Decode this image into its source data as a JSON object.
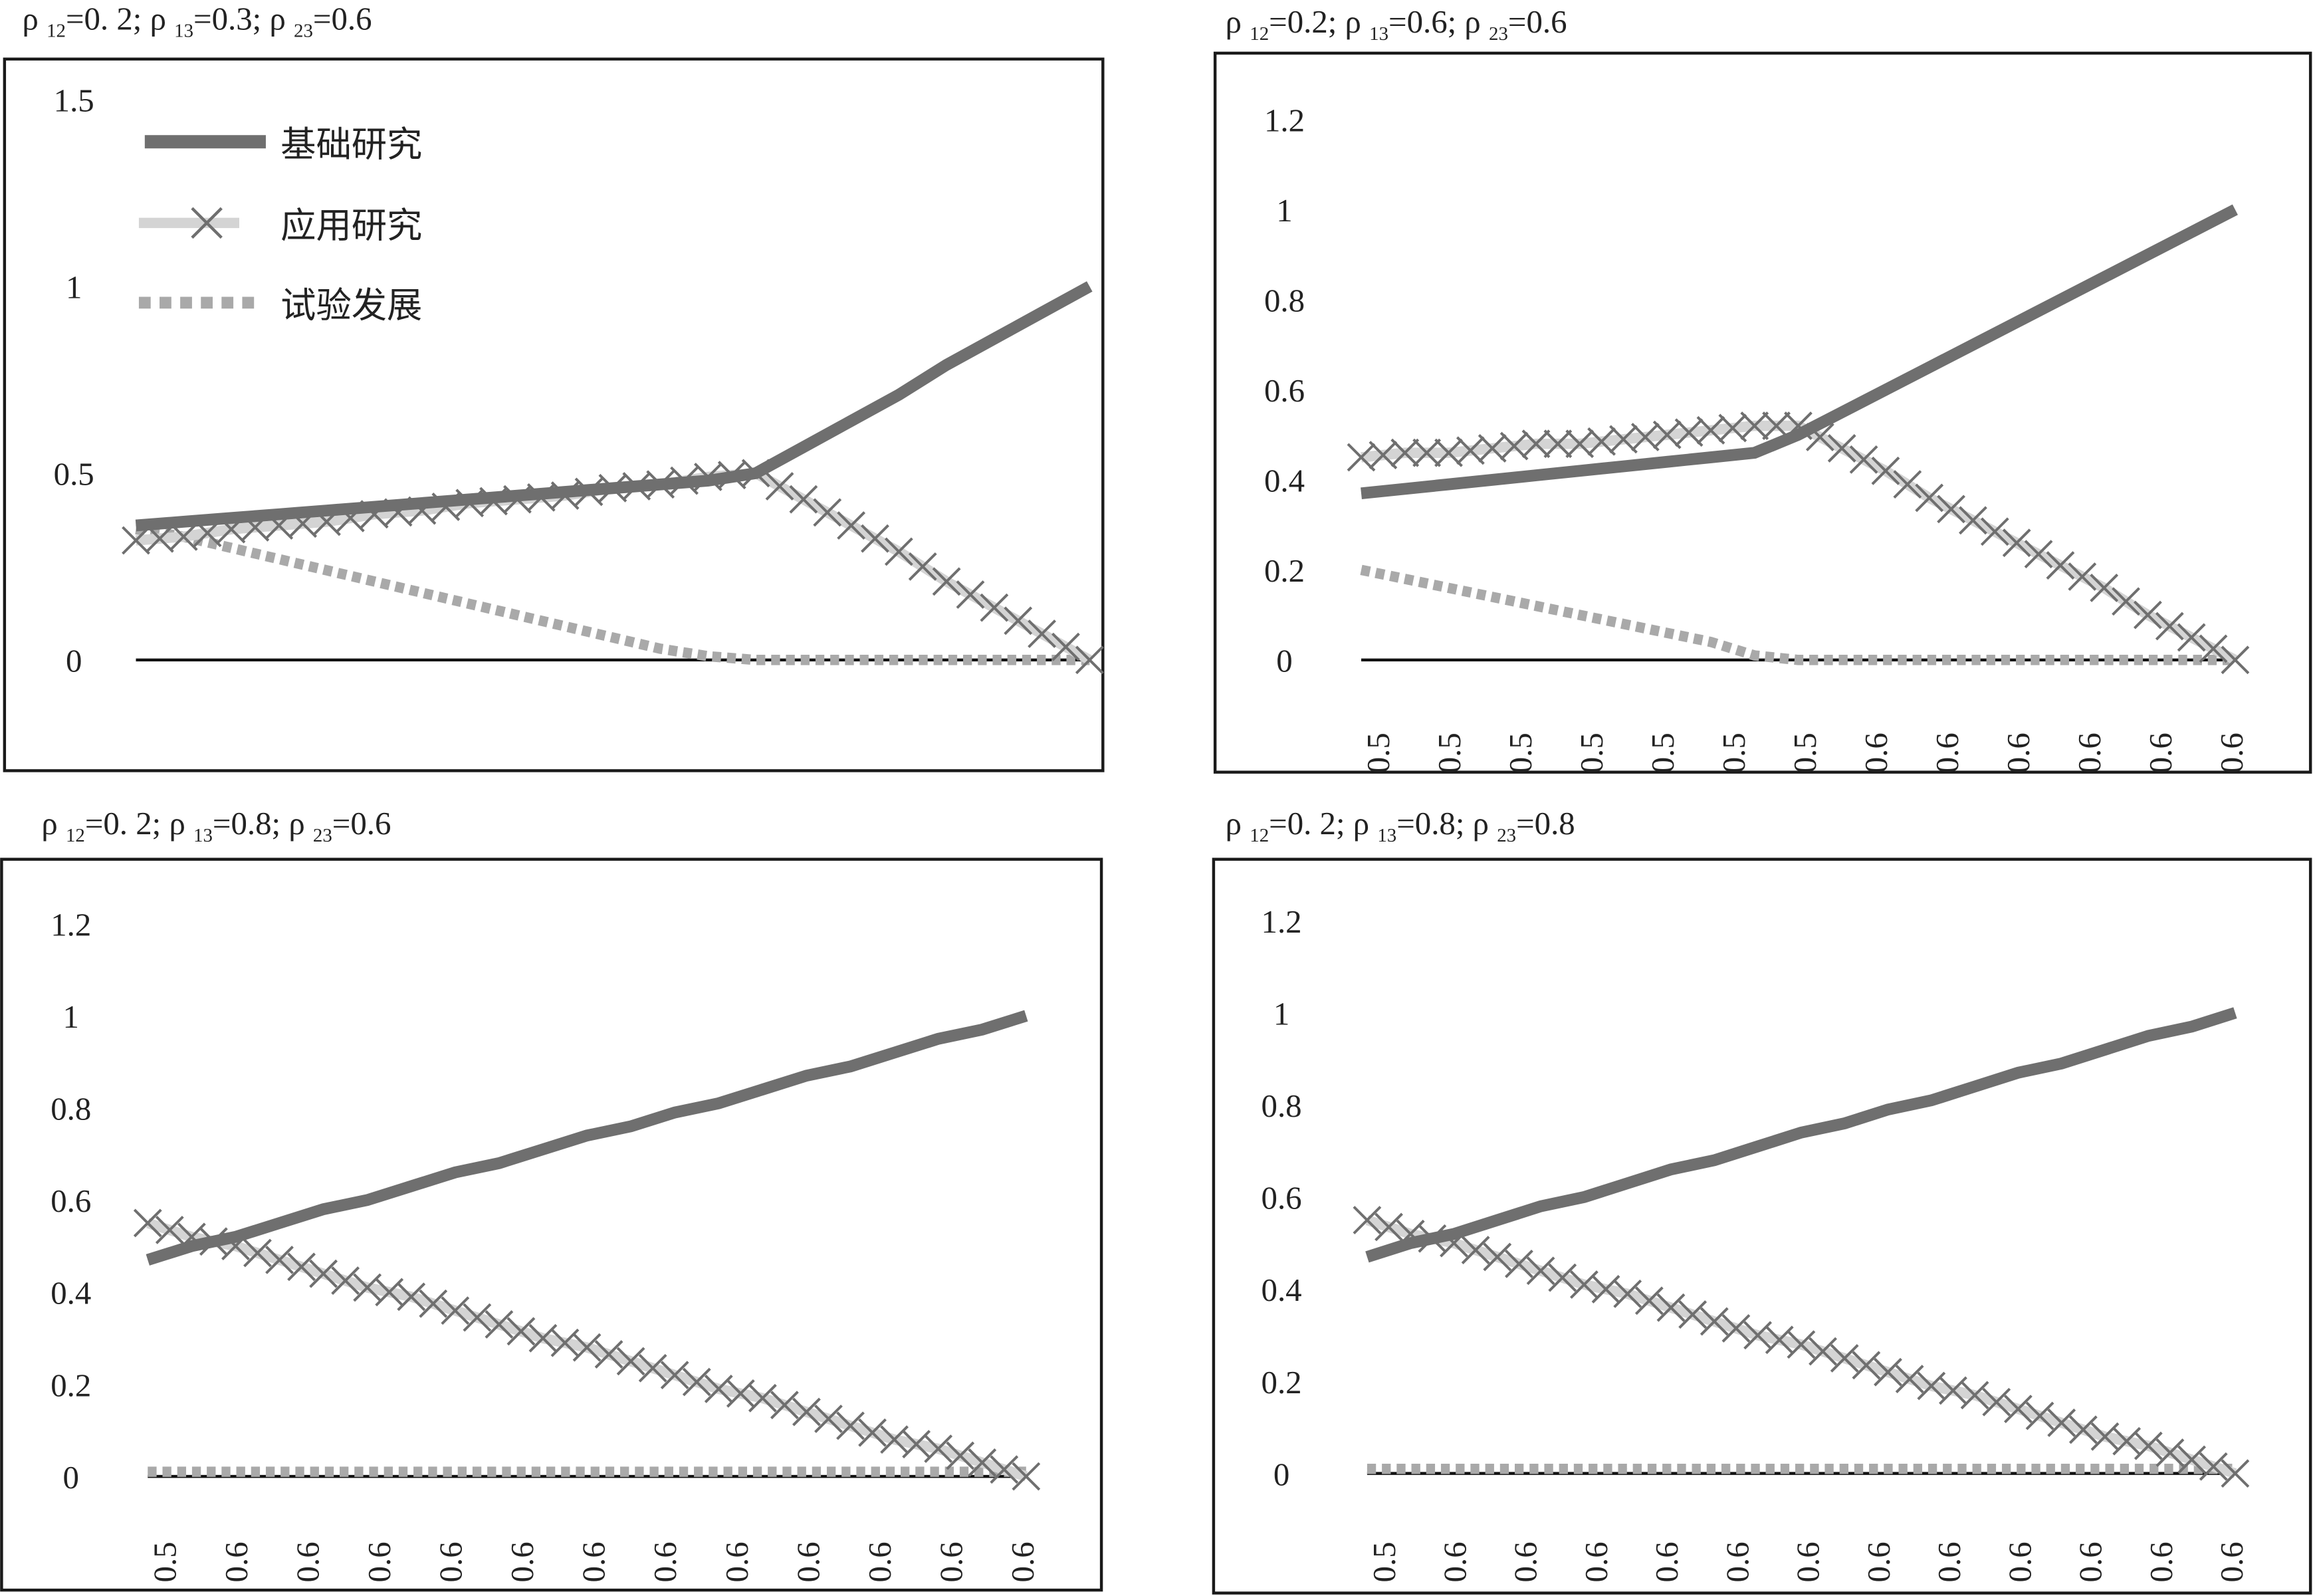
{
  "colors": {
    "basic": "#6f6f6f",
    "applied_line": "#d4d4d4",
    "applied_marker": "#6f6f6f",
    "development": "#a9a9a9",
    "frame": "#1a1a1a"
  },
  "legend": [
    "基础研究",
    "应用研究",
    "试验发展"
  ],
  "chart_data": [
    {
      "type": "line",
      "title": {
        "p12": "0. 2",
        "p13": "0.3",
        "p23": "0.6"
      },
      "yticks": [
        "0",
        "0.5",
        "1",
        "1.5"
      ],
      "ytick_values": [
        0,
        0.5,
        1,
        1.5
      ],
      "ylim": [
        0,
        1.5
      ],
      "xticks": [],
      "legend_position": "top-left",
      "series": [
        {
          "name": "基础研究",
          "values": [
            0.36,
            0.37,
            0.38,
            0.39,
            0.4,
            0.41,
            0.42,
            0.43,
            0.44,
            0.45,
            0.46,
            0.47,
            0.48,
            0.5,
            0.57,
            0.64,
            0.71,
            0.79,
            0.86,
            0.93,
            1.0
          ]
        },
        {
          "name": "应用研究",
          "values": [
            0.32,
            0.33,
            0.35,
            0.36,
            0.37,
            0.39,
            0.4,
            0.42,
            0.43,
            0.44,
            0.46,
            0.47,
            0.49,
            0.5,
            0.43,
            0.36,
            0.29,
            0.21,
            0.14,
            0.07,
            0.0
          ]
        },
        {
          "name": "试验发展",
          "values": [
            0.35,
            0.33,
            0.3,
            0.27,
            0.24,
            0.21,
            0.18,
            0.15,
            0.12,
            0.09,
            0.06,
            0.03,
            0.01,
            0,
            0,
            0,
            0,
            0,
            0,
            0,
            0
          ]
        }
      ]
    },
    {
      "type": "line",
      "title": {
        "p12": "0.2",
        "p13": "0.6",
        "p23": "0.6"
      },
      "yticks": [
        "0",
        "0.2",
        "0.4",
        "0.6",
        "0.8",
        "1",
        "1.2"
      ],
      "ytick_values": [
        0,
        0.2,
        0.4,
        0.6,
        0.8,
        1,
        1.2
      ],
      "ylim": [
        0,
        1.2
      ],
      "xticks": [
        "0.5",
        "0.5",
        "0.5",
        "0.5",
        "0.5",
        "0.5",
        "0.5",
        "0.6",
        "0.6",
        "0.6",
        "0.6",
        "0.6",
        "0.6"
      ],
      "series": [
        {
          "name": "基础研究",
          "values": [
            0.37,
            0.38,
            0.39,
            0.4,
            0.41,
            0.42,
            0.43,
            0.44,
            0.45,
            0.46,
            0.5,
            0.55,
            0.6,
            0.65,
            0.7,
            0.75,
            0.8,
            0.85,
            0.9,
            0.95,
            1.0
          ]
        },
        {
          "name": "应用研究",
          "values": [
            0.45,
            0.46,
            0.46,
            0.47,
            0.48,
            0.48,
            0.49,
            0.5,
            0.51,
            0.52,
            0.52,
            0.47,
            0.42,
            0.36,
            0.31,
            0.26,
            0.21,
            0.16,
            0.1,
            0.05,
            0.0
          ]
        },
        {
          "name": "试验发展",
          "values": [
            0.2,
            0.18,
            0.16,
            0.14,
            0.12,
            0.1,
            0.08,
            0.06,
            0.04,
            0.01,
            0,
            0,
            0,
            0,
            0,
            0,
            0,
            0,
            0,
            0,
            0
          ]
        }
      ]
    },
    {
      "type": "line",
      "title": {
        "p12": "0. 2",
        "p13": "0.8",
        "p23": "0.6"
      },
      "yticks": [
        "0",
        "0.2",
        "0.4",
        "0.6",
        "0.8",
        "1",
        "1.2"
      ],
      "ytick_values": [
        0,
        0.2,
        0.4,
        0.6,
        0.8,
        1,
        1.2
      ],
      "ylim": [
        0,
        1.2
      ],
      "xticks": [
        "0.5",
        "0.6",
        "0.6",
        "0.6",
        "0.6",
        "0.6",
        "0.6",
        "0.6",
        "0.6",
        "0.6",
        "0.6",
        "0.6",
        "0.6"
      ],
      "series": [
        {
          "name": "基础研究",
          "values": [
            0.47,
            0.5,
            0.52,
            0.55,
            0.58,
            0.6,
            0.63,
            0.66,
            0.68,
            0.71,
            0.74,
            0.76,
            0.79,
            0.81,
            0.84,
            0.87,
            0.89,
            0.92,
            0.95,
            0.97,
            1.0
          ]
        },
        {
          "name": "应用研究",
          "values": [
            0.55,
            0.52,
            0.5,
            0.47,
            0.44,
            0.41,
            0.39,
            0.36,
            0.33,
            0.3,
            0.28,
            0.25,
            0.22,
            0.19,
            0.17,
            0.14,
            0.11,
            0.08,
            0.06,
            0.03,
            0.0
          ]
        },
        {
          "name": "试验发展",
          "values": [
            0.01,
            0.01,
            0.01,
            0.01,
            0.01,
            0.01,
            0.01,
            0.01,
            0.01,
            0.01,
            0.01,
            0.01,
            0.01,
            0.01,
            0.01,
            0.01,
            0.01,
            0.01,
            0.01,
            0.01,
            0.01
          ]
        }
      ]
    },
    {
      "type": "line",
      "title": {
        "p12": "0. 2",
        "p13": "0.8",
        "p23": "0.8"
      },
      "yticks": [
        "0",
        "0.2",
        "0.4",
        "0.6",
        "0.8",
        "1",
        "1.2"
      ],
      "ytick_values": [
        0,
        0.2,
        0.4,
        0.6,
        0.8,
        1,
        1.2
      ],
      "ylim": [
        0,
        1.2
      ],
      "xticks": [
        "0.5",
        "0.6",
        "0.6",
        "0.6",
        "0.6",
        "0.6",
        "0.6",
        "0.6",
        "0.6",
        "0.6",
        "0.6",
        "0.6",
        "0.6"
      ],
      "series": [
        {
          "name": "基础研究",
          "values": [
            0.47,
            0.5,
            0.52,
            0.55,
            0.58,
            0.6,
            0.63,
            0.66,
            0.68,
            0.71,
            0.74,
            0.76,
            0.79,
            0.81,
            0.84,
            0.87,
            0.89,
            0.92,
            0.95,
            0.97,
            1.0
          ]
        },
        {
          "name": "应用研究",
          "values": [
            0.55,
            0.52,
            0.5,
            0.47,
            0.44,
            0.41,
            0.39,
            0.36,
            0.33,
            0.3,
            0.28,
            0.25,
            0.22,
            0.19,
            0.17,
            0.14,
            0.11,
            0.08,
            0.06,
            0.03,
            0.0
          ]
        },
        {
          "name": "试验发展",
          "values": [
            0.01,
            0.01,
            0.01,
            0.01,
            0.01,
            0.01,
            0.01,
            0.01,
            0.01,
            0.01,
            0.01,
            0.01,
            0.01,
            0.01,
            0.01,
            0.01,
            0.01,
            0.01,
            0.01,
            0.01,
            0.01
          ]
        }
      ]
    }
  ]
}
